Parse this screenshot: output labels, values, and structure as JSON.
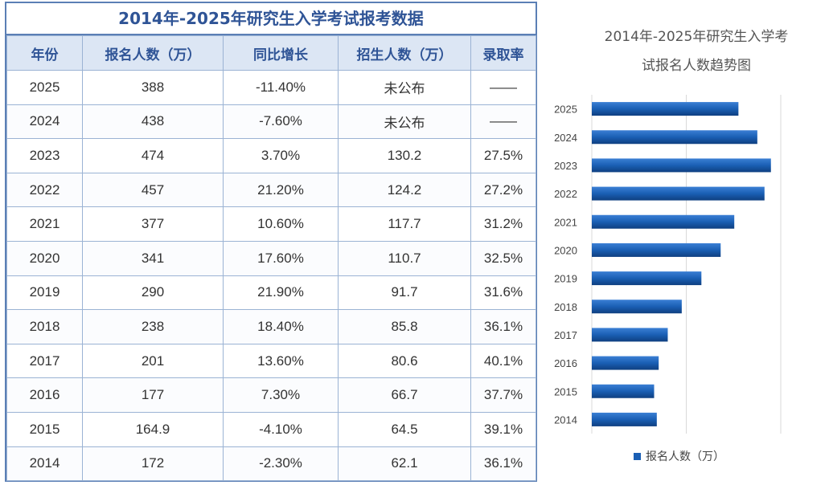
{
  "table": {
    "title": "2014年-2025年研究生入学考试报考数据",
    "headers": [
      "年份",
      "报名人数（万）",
      "同比增长",
      "招生人数（万）",
      "录取率"
    ],
    "rows": [
      [
        "2025",
        "388",
        "-11.40%",
        "未公布",
        "——"
      ],
      [
        "2024",
        "438",
        "-7.60%",
        "未公布",
        "——"
      ],
      [
        "2023",
        "474",
        "3.70%",
        "130.2",
        "27.5%"
      ],
      [
        "2022",
        "457",
        "21.20%",
        "124.2",
        "27.2%"
      ],
      [
        "2021",
        "377",
        "10.60%",
        "117.7",
        "31.2%"
      ],
      [
        "2020",
        "341",
        "17.60%",
        "110.7",
        "32.5%"
      ],
      [
        "2019",
        "290",
        "21.90%",
        "91.7",
        "31.6%"
      ],
      [
        "2018",
        "238",
        "18.40%",
        "85.8",
        "36.1%"
      ],
      [
        "2017",
        "201",
        "13.60%",
        "80.6",
        "40.1%"
      ],
      [
        "2016",
        "177",
        "7.30%",
        "66.7",
        "37.7%"
      ],
      [
        "2015",
        "164.9",
        "-4.10%",
        "64.5",
        "39.1%"
      ],
      [
        "2014",
        "172",
        "-2.30%",
        "62.1",
        "36.1%"
      ]
    ]
  },
  "chart_data": {
    "type": "bar",
    "orientation": "horizontal",
    "title_lines": [
      "2014年-2025年研究生入学考",
      "试报名人数趋势图"
    ],
    "categories": [
      "2025",
      "2024",
      "2023",
      "2022",
      "2021",
      "2020",
      "2019",
      "2018",
      "2017",
      "2016",
      "2015",
      "2014"
    ],
    "series": [
      {
        "name": "报名人数（万）",
        "values": [
          388,
          438,
          474,
          457,
          377,
          341,
          290,
          238,
          201,
          177,
          164.9,
          172
        ],
        "color": "#1a5fb4"
      }
    ],
    "xlim": [
      0,
      500
    ],
    "grid": true,
    "legend": "bottom"
  }
}
